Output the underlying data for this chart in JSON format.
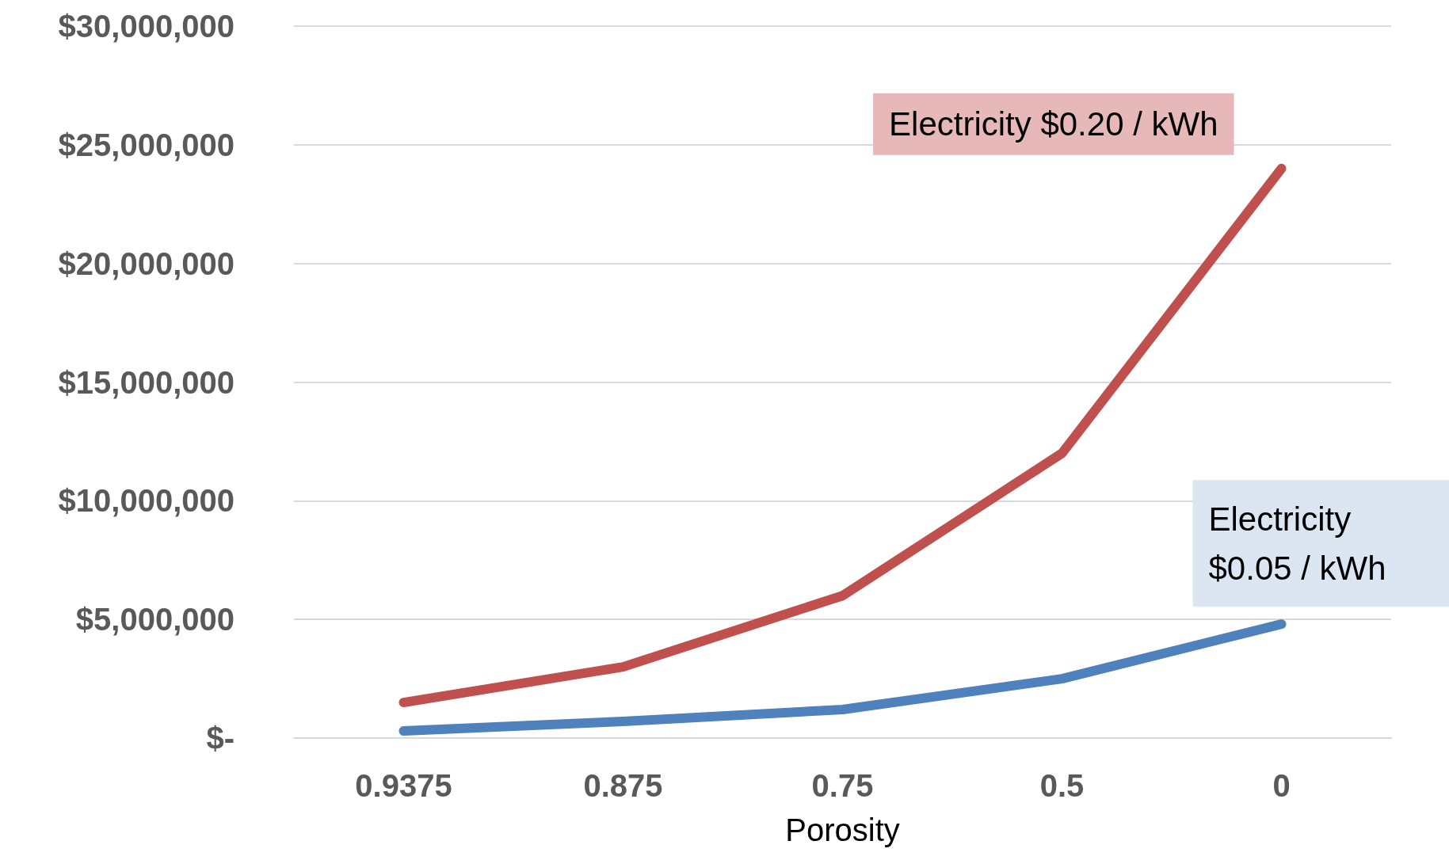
{
  "chart_data": {
    "type": "line",
    "xlabel": "Porosity",
    "categories": [
      "0.9375",
      "0.875",
      "0.75",
      "0.5",
      "0"
    ],
    "series": [
      {
        "name": "Electricity $0.20 / kWh",
        "color": "#c0504d",
        "values": [
          1500000,
          3000000,
          6000000,
          12000000,
          24000000
        ]
      },
      {
        "name": "Electricity $0.05 / kWh",
        "color": "#4f81bd",
        "values": [
          300000,
          700000,
          1200000,
          2500000,
          4800000
        ]
      }
    ],
    "ylim": [
      0,
      30000000
    ],
    "yticks": [
      {
        "value": 0,
        "label": "$-"
      },
      {
        "value": 5000000,
        "label": "$5,000,000"
      },
      {
        "value": 10000000,
        "label": "$10,000,000"
      },
      {
        "value": 15000000,
        "label": "$15,000,000"
      },
      {
        "value": 20000000,
        "label": "$20,000,000"
      },
      {
        "value": 25000000,
        "label": "$25,000,000"
      },
      {
        "value": 30000000,
        "label": "$30,000,000"
      }
    ],
    "grid": "y",
    "legend": false,
    "line_style": "solid"
  }
}
